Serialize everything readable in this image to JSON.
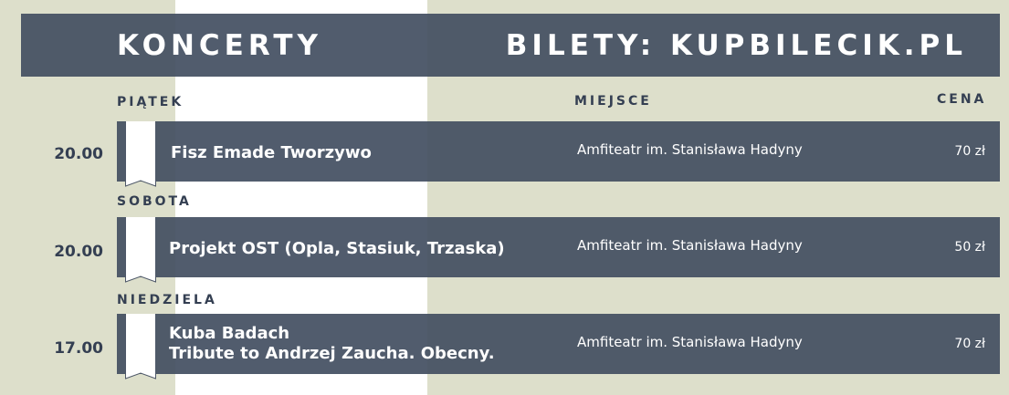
{
  "header": {
    "left": "KONCERTY",
    "right": "BILETY: KUPBILECIK.PL"
  },
  "columns": {
    "place": "MIEJSCE",
    "price": "CENA"
  },
  "days": [
    {
      "day": "PIĄTEK",
      "time": "20.00",
      "title": [
        "Fisz Emade Tworzywo"
      ],
      "place": "Amfiteatr im. Stanisława Hadyny",
      "price": "70 zł"
    },
    {
      "day": "SOBOTA",
      "time": "20.00",
      "title": [
        "Projekt OST (Opla, Stasiuk, Trzaska)"
      ],
      "place": "Amfiteatr im. Stanisława Hadyny",
      "price": "50 zł"
    },
    {
      "day": "NIEDZIELA",
      "time": "17.00",
      "title": [
        "Kuba Badach",
        "Tribute to Andrzej Zaucha. Obecny."
      ],
      "place": "Amfiteatr im. Stanisława Hadyny",
      "price": "70 zł"
    }
  ]
}
